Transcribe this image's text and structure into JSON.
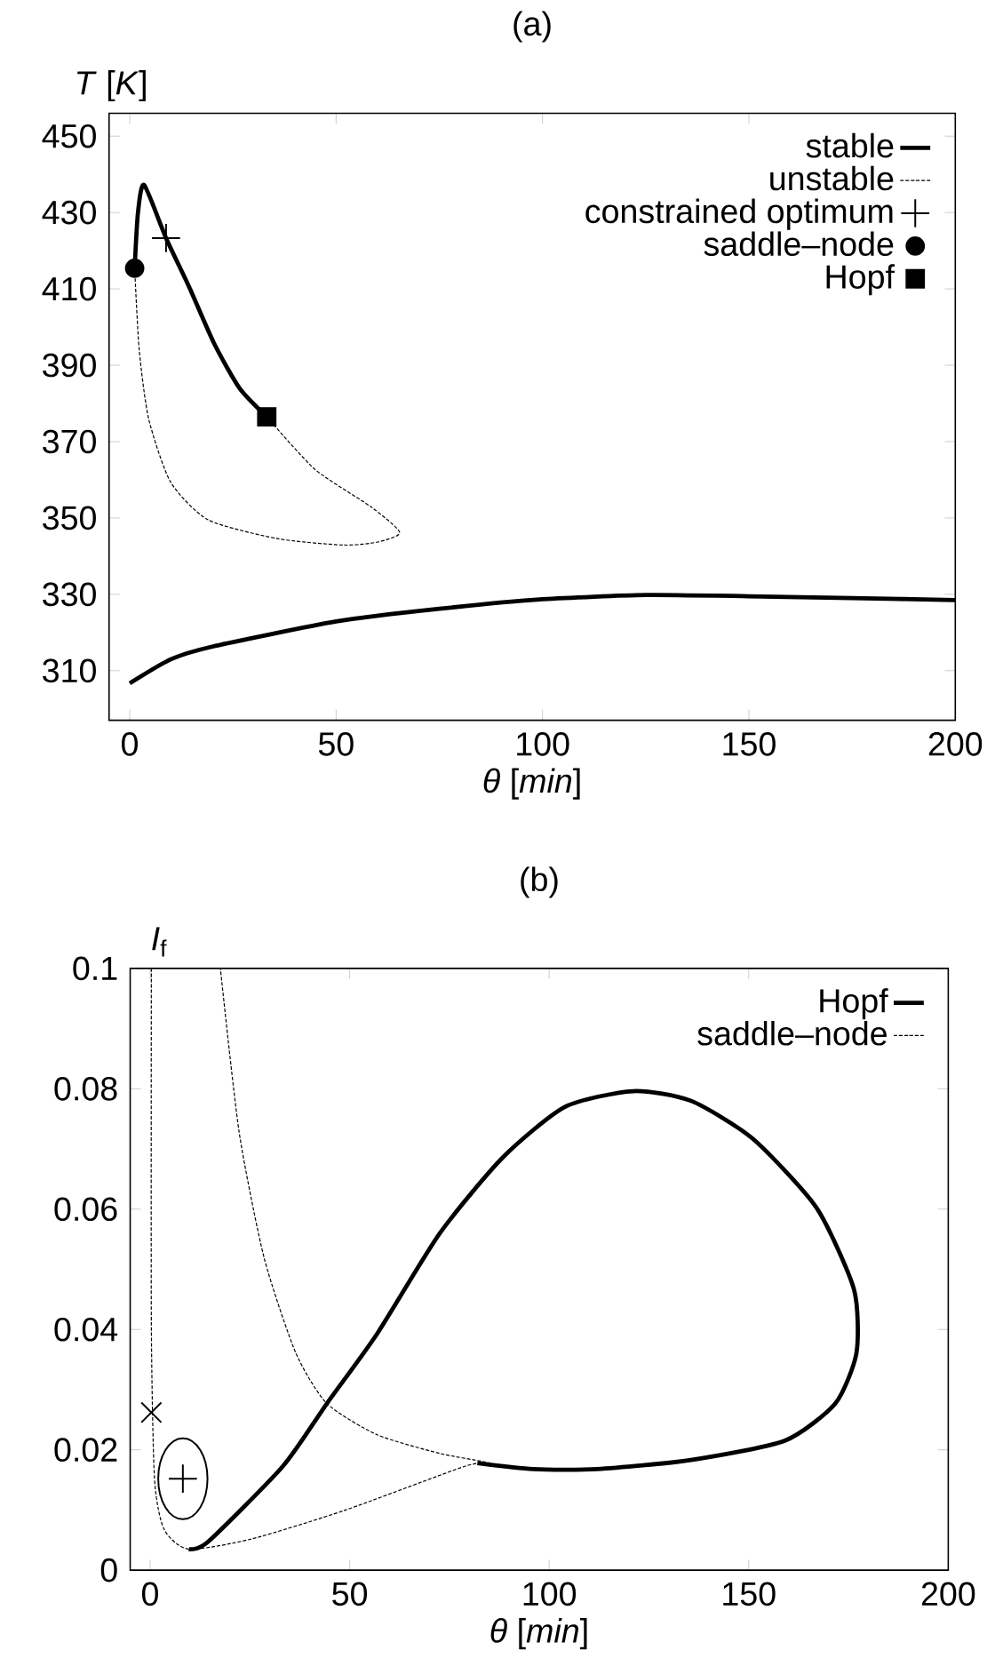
{
  "chart_data": [
    {
      "type": "line",
      "title": "(a)",
      "xlabel": "*θ* [*min*]",
      "ylabel": "*T* [*K*]",
      "xlim": [
        -5,
        200
      ],
      "ylim": [
        297,
        456
      ],
      "xticks": [
        0,
        50,
        100,
        150,
        200
      ],
      "yticks": [
        310,
        330,
        350,
        370,
        390,
        410,
        430,
        450
      ],
      "legend": "top right",
      "series": [
        {
          "name": "stable",
          "color": "#000000",
          "line_style": "solid",
          "marker": "none",
          "x": [
            0,
            10,
            20,
            50,
            75,
            100,
            125,
            150,
            175,
            200
          ],
          "values": [
            306.7,
            313,
            316.3,
            322.9,
            326.2,
            328.7,
            329.8,
            329.5,
            329,
            328.5
          ]
        },
        {
          "name": "unstable",
          "color": "#000000",
          "line_style": "dashed",
          "marker": "none",
          "x": [
            33.2,
            44.9,
            58.6,
            65.4,
            60.1,
            51.7,
            35.7,
            19,
            9.9,
            4.6,
            2.3,
            1.2
          ],
          "values": [
            376.5,
            362.7,
            352.8,
            346.2,
            343.7,
            342.9,
            344.6,
            349.5,
            359.4,
            375.9,
            394,
            415.4
          ]
        },
        {
          "name": "constrained optimum",
          "type": "scatter",
          "color": "#000000",
          "marker": "cross",
          "x": [
            8.8
          ],
          "values": [
            423.3
          ]
        },
        {
          "name": "saddle–node",
          "type": "scatter",
          "color": "#000000",
          "marker": "circle",
          "x": [
            1.2
          ],
          "values": [
            415.4
          ]
        },
        {
          "name": "Hopf",
          "type": "scatter",
          "color": "#000000",
          "marker": "square",
          "x": [
            33.2
          ],
          "values": [
            376.5
          ]
        },
        {
          "color": "#000000",
          "line_style": "solid",
          "marker": "none",
          "x": [
            1.2,
            2,
            3.5,
            8.8,
            14.4,
            20.5,
            26.6,
            33.2
          ],
          "values": [
            415.4,
            430,
            437.2,
            423.3,
            410.5,
            395.6,
            384,
            376.5
          ]
        }
      ]
    },
    {
      "type": "line",
      "title": "(b)",
      "xlabel": "*θ* [*min*]",
      "ylabel": "*I*$_{f}$",
      "xlim": [
        -5,
        200
      ],
      "ylim": [
        0,
        0.1
      ],
      "xticks": [
        0,
        50,
        100,
        150,
        200
      ],
      "yticks": [
        0,
        0.02,
        0.04,
        0.06,
        0.08,
        0.1
      ],
      "legend": "top right",
      "series": [
        {
          "name": "Hopf",
          "color": "#000000",
          "line_style": "solid",
          "marker": "none",
          "x": [
            9.7,
            14.5,
            33.3,
            44.3,
            56.9,
            72.6,
            88.4,
            104,
            121,
            135.5,
            151,
            167,
            176.4,
            177,
            171.7,
            159,
            135.5,
            112,
            96,
            82
          ],
          "values": [
            0.0035,
            0.0047,
            0.0173,
            0.0277,
            0.0393,
            0.056,
            0.0686,
            0.077,
            0.0796,
            0.078,
            0.0717,
            0.0602,
            0.0466,
            0.0361,
            0.0277,
            0.0215,
            0.0183,
            0.0168,
            0.0168,
            0.0178
          ]
        },
        {
          "name": "saddle–node",
          "color": "#000000",
          "line_style": "dashed",
          "marker": "none",
          "x": [
            0.3,
            0.3,
            1.1,
            3.5,
            9.7,
            25.5,
            49,
            79,
            85,
            72.6,
            56.9,
            44.3,
            36.5,
            28.6,
            22.3,
            17.6
          ],
          "values": [
            0.1,
            0.041,
            0.0152,
            0.0068,
            0.0035,
            0.0052,
            0.01,
            0.0173,
            0.0178,
            0.0194,
            0.0225,
            0.0277,
            0.0361,
            0.0518,
            0.0728,
            0.1
          ]
        },
        {
          "type": "scatter",
          "color": "#000000",
          "marker": "cross",
          "x": [
            8.2
          ],
          "values": [
            0.0152
          ]
        },
        {
          "type": "scatter",
          "color": "#000000",
          "marker": "x",
          "x": [
            0.3
          ],
          "values": [
            0.0262
          ]
        }
      ]
    }
  ]
}
